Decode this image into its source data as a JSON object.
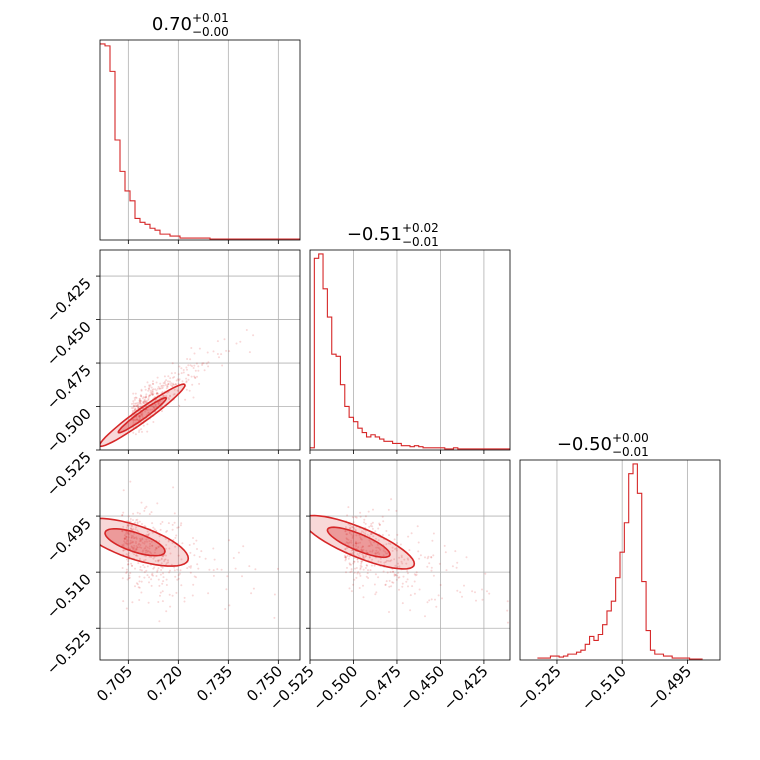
{
  "chart_data": {
    "type": "corner",
    "color": "#d62728",
    "params": [
      {
        "name": "p0",
        "title": {
          "median": "0.70",
          "plus": "+0.01",
          "minus": "−0.00"
        },
        "range": [
          0.6965,
          0.7565
        ],
        "ticks": [
          0.705,
          0.72,
          0.735,
          0.75
        ],
        "tick_labels": [
          "0.705",
          "0.720",
          "0.735",
          "0.750"
        ],
        "hist": {
          "start": 0.6965,
          "width": 0.0015,
          "counts": [
            100,
            99,
            86,
            51,
            35,
            25,
            20,
            11,
            9,
            8,
            6,
            5,
            3,
            3,
            2,
            2,
            1,
            1,
            1,
            1,
            1,
            1,
            0.5,
            0.5,
            0.5,
            0.5,
            0.5,
            0.5,
            0.5,
            0.5,
            0.5,
            0.5,
            0.5,
            0.5,
            0.5,
            0.5,
            0.5,
            0.5,
            0.5,
            0.5
          ]
        }
      },
      {
        "name": "p1",
        "title": {
          "median": "−0.51",
          "plus": "+0.02",
          "minus": "−0.01"
        },
        "range": [
          -0.525,
          -0.41
        ],
        "ticks": [
          -0.525,
          -0.5,
          -0.475,
          -0.45,
          -0.425
        ],
        "tick_labels": [
          "−0.525",
          "−0.500",
          "−0.475",
          "−0.450",
          "−0.425"
        ],
        "hist": {
          "start": -0.525,
          "width": 0.0025,
          "counts": [
            1,
            88,
            90,
            74,
            61,
            44,
            43,
            30,
            20,
            15,
            13,
            10,
            8,
            6,
            7,
            6,
            5,
            4,
            4,
            3,
            3,
            2,
            2,
            1.5,
            2,
            1.5,
            1,
            1,
            1,
            1,
            1,
            0.5,
            0.5,
            1,
            0.5,
            0.5,
            0.5,
            0.5,
            0.5,
            0.5,
            0.5,
            0.5,
            0.5,
            0.5,
            0.5,
            0.5
          ]
        }
      },
      {
        "name": "p2",
        "title": {
          "median": "−0.50",
          "plus": "+0.00",
          "minus": "−0.01"
        },
        "range": [
          -0.5335,
          -0.4875
        ],
        "ticks": [
          -0.525,
          -0.51,
          -0.495
        ],
        "tick_labels": [
          "−0.525",
          "−0.510",
          "−0.495"
        ],
        "hist": {
          "start": -0.5295,
          "width": 0.001,
          "counts": [
            1,
            1,
            1,
            2,
            2,
            1.5,
            2,
            3,
            3,
            4,
            5,
            8,
            12,
            10,
            13,
            18,
            25,
            30,
            42,
            55,
            70,
            95,
            100,
            85,
            40,
            15,
            5,
            3,
            3,
            2,
            2,
            1,
            1,
            1,
            1,
            0.5,
            0.5,
            0.5
          ]
        }
      }
    ],
    "pairs": [
      {
        "x": 0,
        "y": 1,
        "ylim": [
          -0.525,
          -0.41
        ],
        "mean": [
          0.706,
          -0.505
        ],
        "sd": [
          0.008,
          0.012
        ],
        "corr": 0.9,
        "n_points": 420
      },
      {
        "x": 0,
        "y": 2,
        "ylim": [
          -0.5335,
          -0.48
        ],
        "mean": [
          0.703,
          -0.502
        ],
        "sd": [
          0.01,
          0.006
        ],
        "corr": -0.45,
        "n_points": 420
      },
      {
        "x": 1,
        "y": 2,
        "ylim": [
          -0.5335,
          -0.48
        ],
        "mean": [
          -0.505,
          -0.502
        ],
        "sd": [
          0.02,
          0.006
        ],
        "corr": -0.6,
        "n_points": 420
      }
    ]
  }
}
